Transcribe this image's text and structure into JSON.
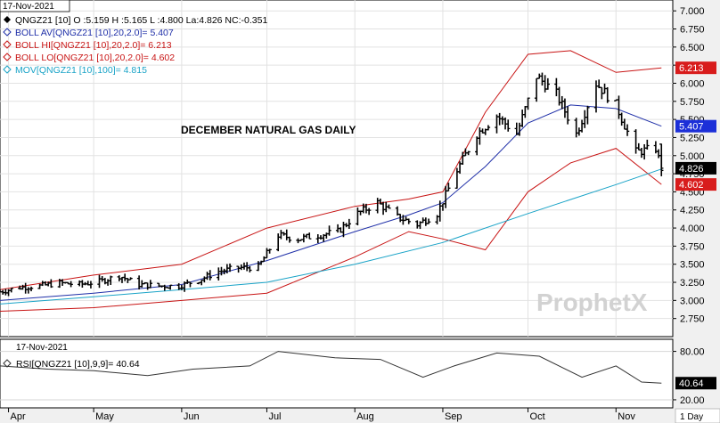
{
  "main_panel": {
    "date": "17-Nov-2021",
    "legend": [
      {
        "marker": "filled-diamond",
        "color": "#000000",
        "text": "QNGZ21 [10] O :5.159 H :5.165 L :4.800 La:4.826 NC:-0.351"
      },
      {
        "marker": "hollow-diamond",
        "color": "#1f2fa8",
        "text": "BOLL AV[QNGZ21 [10],20,2.0]= 5.407"
      },
      {
        "marker": "hollow-diamond",
        "color": "#c81414",
        "text": "BOLL HI[QNGZ21 [10],20,2.0]= 6.213"
      },
      {
        "marker": "hollow-diamond",
        "color": "#c81414",
        "text": "BOLL LO[QNGZ21 [10],20,2.0]= 4.602"
      },
      {
        "marker": "hollow-diamond",
        "color": "#19a3c7",
        "text": "MOV[QNGZ21 [10],100]= 4.815"
      }
    ],
    "annotation": "DECEMBER NATURAL GAS DAILY",
    "watermark": "ProphetX",
    "price_tags": [
      {
        "label": "6.213",
        "value": 6.213,
        "bg": "#d81c1c",
        "fg": "#ffffff"
      },
      {
        "label": "5.407",
        "value": 5.407,
        "bg": "#1c2fd8",
        "fg": "#ffffff"
      },
      {
        "label": "4.826",
        "value": 4.826,
        "bg": "#000000",
        "fg": "#ffffff"
      },
      {
        "label": "4.602",
        "value": 4.602,
        "bg": "#d81c1c",
        "fg": "#ffffff"
      }
    ]
  },
  "rsi_panel": {
    "date": "17-Nov-2021",
    "legend": "RSI[QNGZ21 [10],9,9]= 40.64",
    "tag": {
      "label": "40.64",
      "value": 40.64,
      "bg": "#000000",
      "fg": "#ffffff"
    }
  },
  "x_axis": {
    "months": [
      {
        "label": "Apr",
        "date": "2021-04-01"
      },
      {
        "label": "May",
        "date": "2021-05-01"
      },
      {
        "label": "Jun",
        "date": "2021-06-01"
      },
      {
        "label": "Jul",
        "date": "2021-07-01"
      },
      {
        "label": "Aug",
        "date": "2021-08-01"
      },
      {
        "label": "Sep",
        "date": "2021-09-01"
      },
      {
        "label": "Oct",
        "date": "2021-10-01"
      },
      {
        "label": "Nov",
        "date": "2021-11-01"
      }
    ],
    "interval": "1 Day"
  },
  "chart_data": [
    {
      "type": "ohlc",
      "name": "QNGZ21 [10]",
      "x_range": [
        "2021-03-29",
        "2021-11-21"
      ],
      "y_range": [
        2.5,
        7.15
      ],
      "y_ticks": [
        "7.000",
        "6.750",
        "6.500",
        "6.250",
        "6.000",
        "5.750",
        "5.500",
        "5.250",
        "5.000",
        "4.750",
        "4.500",
        "4.250",
        "4.000",
        "3.750",
        "3.500",
        "3.250",
        "3.000",
        "2.750"
      ],
      "grid": true,
      "last_bar": {
        "date": "2021-11-17",
        "open": 5.159,
        "high": 5.165,
        "low": 4.8,
        "last": 4.826,
        "net_change": -0.351
      },
      "series": [
        {
          "name": "QNGZ21 [10] close",
          "color": "#000000",
          "points": [
            [
              "2021-03-29",
              3.12
            ],
            [
              "2021-04-05",
              3.18
            ],
            [
              "2021-04-12",
              3.2
            ],
            [
              "2021-04-19",
              3.24
            ],
            [
              "2021-04-26",
              3.22
            ],
            [
              "2021-05-03",
              3.26
            ],
            [
              "2021-05-10",
              3.34
            ],
            [
              "2021-05-17",
              3.22
            ],
            [
              "2021-05-24",
              3.2
            ],
            [
              "2021-05-31",
              3.2
            ],
            [
              "2021-06-07",
              3.28
            ],
            [
              "2021-06-14",
              3.4
            ],
            [
              "2021-06-21",
              3.45
            ],
            [
              "2021-06-28",
              3.46
            ],
            [
              "2021-07-05",
              3.9
            ],
            [
              "2021-07-12",
              3.85
            ],
            [
              "2021-07-19",
              3.9
            ],
            [
              "2021-07-26",
              3.95
            ],
            [
              "2021-08-02",
              4.2
            ],
            [
              "2021-08-09",
              4.35
            ],
            [
              "2021-08-16",
              4.15
            ],
            [
              "2021-08-23",
              4.05
            ],
            [
              "2021-08-30",
              4.2
            ],
            [
              "2021-09-06",
              4.8
            ],
            [
              "2021-09-13",
              5.3
            ],
            [
              "2021-09-20",
              5.55
            ],
            [
              "2021-09-27",
              5.3
            ],
            [
              "2021-10-04",
              6.1
            ],
            [
              "2021-10-11",
              5.85
            ],
            [
              "2021-10-18",
              5.3
            ],
            [
              "2021-10-25",
              6.0
            ],
            [
              "2021-11-01",
              5.7
            ],
            [
              "2021-11-08",
              5.05
            ],
            [
              "2021-11-15",
              5.1
            ],
            [
              "2021-11-17",
              4.826
            ]
          ]
        },
        {
          "name": "BOLL AV [20,2.0]",
          "color": "#1f2fa8",
          "points": [
            [
              "2021-03-29",
              3.0
            ],
            [
              "2021-05-01",
              3.1
            ],
            [
              "2021-06-01",
              3.22
            ],
            [
              "2021-07-01",
              3.55
            ],
            [
              "2021-08-01",
              3.95
            ],
            [
              "2021-08-20",
              4.18
            ],
            [
              "2021-09-01",
              4.35
            ],
            [
              "2021-09-16",
              4.85
            ],
            [
              "2021-10-01",
              5.45
            ],
            [
              "2021-10-16",
              5.7
            ],
            [
              "2021-11-01",
              5.65
            ],
            [
              "2021-11-17",
              5.407
            ]
          ]
        },
        {
          "name": "BOLL HI [20,2.0]",
          "color": "#c81414",
          "points": [
            [
              "2021-03-29",
              3.15
            ],
            [
              "2021-05-01",
              3.35
            ],
            [
              "2021-06-01",
              3.5
            ],
            [
              "2021-07-01",
              4.0
            ],
            [
              "2021-08-01",
              4.3
            ],
            [
              "2021-08-20",
              4.4
            ],
            [
              "2021-09-01",
              4.5
            ],
            [
              "2021-09-16",
              5.6
            ],
            [
              "2021-10-01",
              6.4
            ],
            [
              "2021-10-16",
              6.45
            ],
            [
              "2021-11-01",
              6.15
            ],
            [
              "2021-11-17",
              6.213
            ]
          ]
        },
        {
          "name": "BOLL LO [20,2.0]",
          "color": "#c81414",
          "points": [
            [
              "2021-03-29",
              2.85
            ],
            [
              "2021-05-01",
              2.9
            ],
            [
              "2021-06-01",
              3.0
            ],
            [
              "2021-07-01",
              3.1
            ],
            [
              "2021-08-01",
              3.6
            ],
            [
              "2021-08-20",
              3.95
            ],
            [
              "2021-09-01",
              3.85
            ],
            [
              "2021-09-16",
              3.7
            ],
            [
              "2021-10-01",
              4.5
            ],
            [
              "2021-10-16",
              4.9
            ],
            [
              "2021-11-01",
              5.1
            ],
            [
              "2021-11-17",
              4.602
            ]
          ]
        },
        {
          "name": "MOV [100]",
          "color": "#19a3c7",
          "points": [
            [
              "2021-03-29",
              2.95
            ],
            [
              "2021-05-01",
              3.05
            ],
            [
              "2021-06-01",
              3.15
            ],
            [
              "2021-07-01",
              3.25
            ],
            [
              "2021-08-01",
              3.5
            ],
            [
              "2021-09-01",
              3.8
            ],
            [
              "2021-10-01",
              4.2
            ],
            [
              "2021-11-01",
              4.6
            ],
            [
              "2021-11-17",
              4.815
            ]
          ]
        }
      ]
    },
    {
      "type": "line",
      "name": "RSI[QNGZ21 [10],9,9]",
      "x_range": [
        "2021-03-29",
        "2021-11-21"
      ],
      "y_range": [
        10,
        95
      ],
      "y_ticks": [
        "80.00",
        "20.00"
      ],
      "grid": true,
      "series": [
        {
          "name": "RSI[QNGZ21 [10],9,9]",
          "color": "#333333",
          "points": [
            [
              "2021-03-29",
              62
            ],
            [
              "2021-04-15",
              58
            ],
            [
              "2021-05-01",
              56
            ],
            [
              "2021-05-20",
              50
            ],
            [
              "2021-06-05",
              58
            ],
            [
              "2021-06-25",
              62
            ],
            [
              "2021-07-05",
              80
            ],
            [
              "2021-07-25",
              72
            ],
            [
              "2021-08-10",
              70
            ],
            [
              "2021-08-25",
              48
            ],
            [
              "2021-09-05",
              62
            ],
            [
              "2021-09-20",
              78
            ],
            [
              "2021-10-05",
              74
            ],
            [
              "2021-10-20",
              48
            ],
            [
              "2021-11-01",
              62
            ],
            [
              "2021-11-10",
              42
            ],
            [
              "2021-11-17",
              40.64
            ]
          ]
        }
      ]
    }
  ]
}
